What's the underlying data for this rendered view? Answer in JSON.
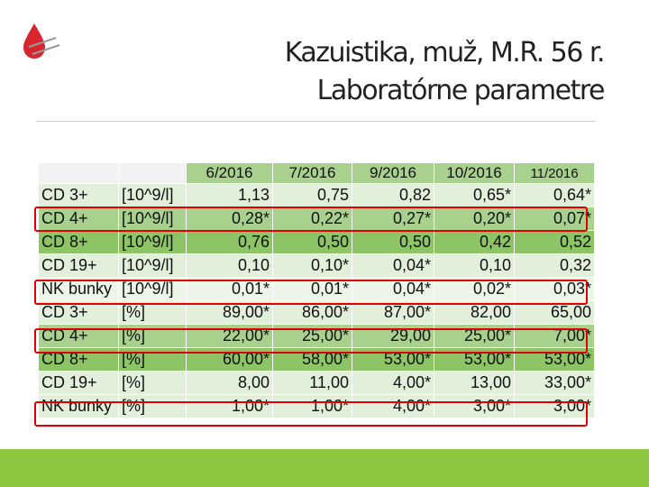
{
  "header": {
    "title_lines": [
      "Kazuistika, muž, M.R. 56 r.",
      "Laboratórne parametre"
    ]
  },
  "table": {
    "columns": [
      "6/2016",
      "7/2016",
      "9/2016",
      "10/2016",
      "11/2016"
    ],
    "rows": [
      [
        "CD 3+",
        "[10^9/l]",
        "1,13",
        "0,75",
        "0,82",
        "0,65*",
        "0,64*"
      ],
      [
        "CD 4+",
        "[10^9/l]",
        "0,28*",
        "0,22*",
        "0,27*",
        "0,20*",
        "0,07*"
      ],
      [
        "CD 8+",
        "[10^9/l]",
        "0,76",
        "0,50",
        "0,50",
        "0,42",
        "0,52"
      ],
      [
        "CD 19+",
        "[10^9/l]",
        "0,10",
        "0,10*",
        "0,04*",
        "0,10",
        "0,32"
      ],
      [
        "NK bunky",
        "[10^9/l]",
        "0,01*",
        "0,01*",
        "0,04*",
        "0,02*",
        "0,03*"
      ],
      [
        "CD 3+",
        "[%]",
        "89,00*",
        "86,00*",
        "87,00*",
        "82,00",
        "65,00"
      ],
      [
        "CD 4+",
        "[%]",
        "22,00*",
        "25,00*",
        "29,00",
        "25,00*",
        "7,00*"
      ],
      [
        "CD 8+",
        "[%]",
        "60,00*",
        "58,00*",
        "53,00*",
        "53,00*",
        "53,00*"
      ],
      [
        "CD 19+",
        "[%]",
        "8,00",
        "11,00",
        "4,00*",
        "13,00",
        "33,00*"
      ],
      [
        "NK bunky",
        "[%]",
        "1,00*",
        "1,00*",
        "4,00*",
        "3,00*",
        "3,00*"
      ]
    ]
  }
}
